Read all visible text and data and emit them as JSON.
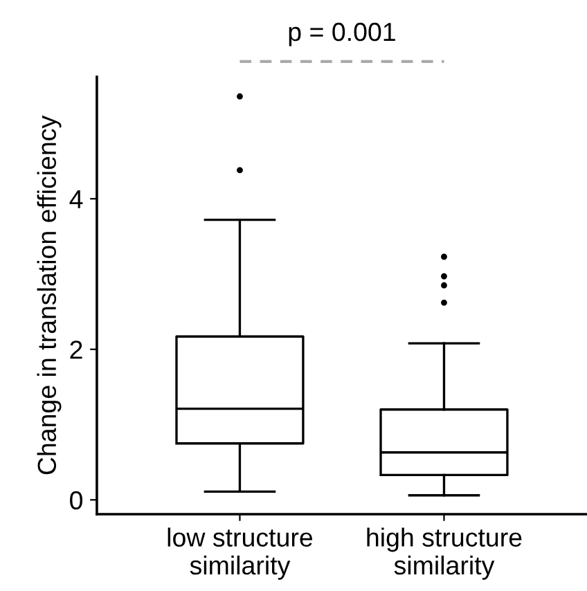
{
  "chart_data": {
    "type": "box",
    "categories": [
      "low structure\nsimilarity",
      "high structure\nsimilarity"
    ],
    "ylabel": "Change in translation efficiency",
    "ylim": [
      -0.19,
      5.62
    ],
    "yticks": [
      0,
      2,
      4
    ],
    "grid": false,
    "series": [
      {
        "color": "#000000",
        "boxes": [
          {
            "low": 0.11,
            "q1": 0.75,
            "median": 1.21,
            "q3": 2.17,
            "high": 3.72,
            "outliers": [
              4.38,
              5.36
            ]
          },
          {
            "low": 0.06,
            "q1": 0.33,
            "median": 0.63,
            "q3": 1.2,
            "high": 2.08,
            "outliers": [
              2.62,
              2.85,
              2.97,
              3.23
            ]
          }
        ]
      }
    ],
    "annotations": [
      "p = 0.001"
    ]
  }
}
